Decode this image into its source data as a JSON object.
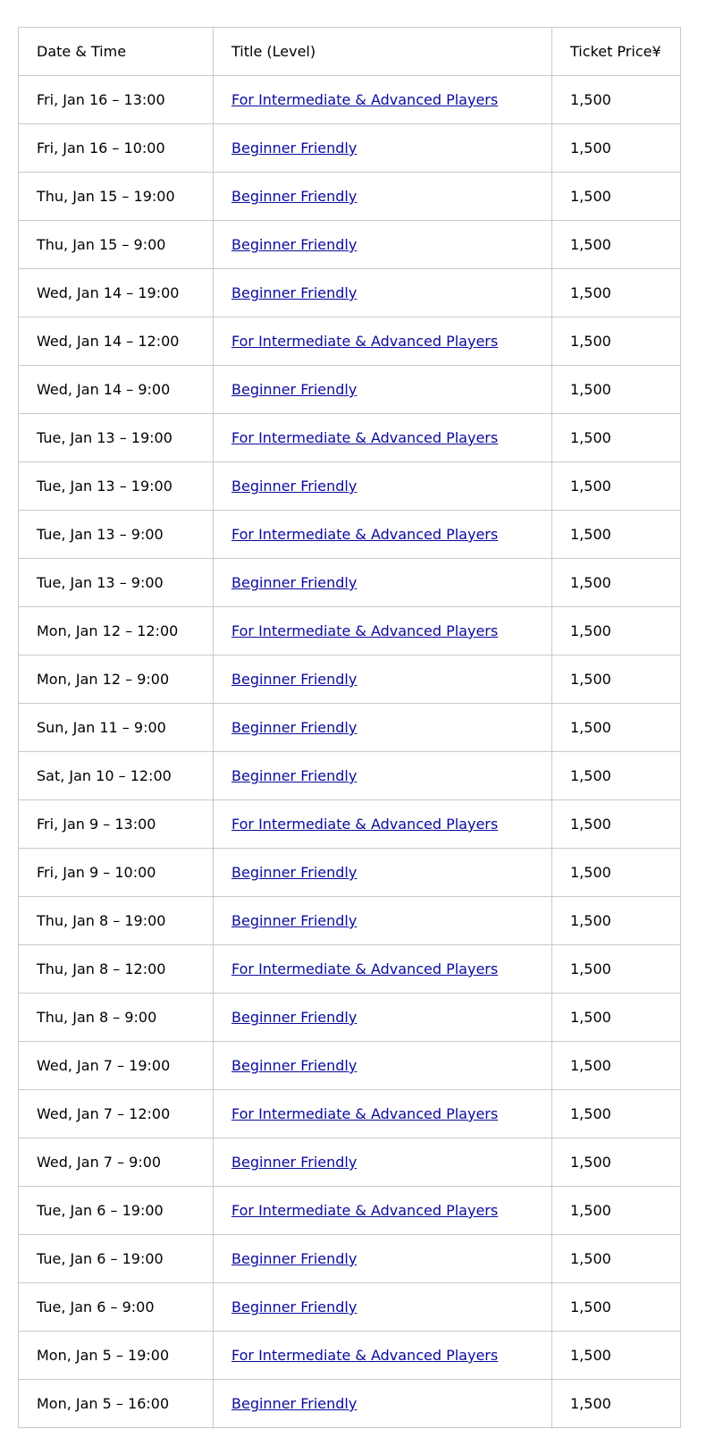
{
  "table": {
    "headers": [
      "Date & Time",
      "Title (Level)",
      "Ticket Price¥"
    ],
    "rows": [
      [
        "Fri, Jan 16 – 13:00",
        "For Intermediate & Advanced Players",
        "1,500"
      ],
      [
        "Fri, Jan 16 – 10:00",
        "Beginner Friendly",
        "1,500"
      ],
      [
        "Thu, Jan 15 – 19:00",
        "Beginner Friendly",
        "1,500"
      ],
      [
        "Thu, Jan 15 – 9:00",
        "Beginner Friendly",
        "1,500"
      ],
      [
        "Wed, Jan 14 – 19:00",
        "Beginner Friendly",
        "1,500"
      ],
      [
        "Wed, Jan 14 – 12:00",
        "For Intermediate & Advanced Players",
        "1,500"
      ],
      [
        "Wed, Jan 14 – 9:00",
        "Beginner Friendly",
        "1,500"
      ],
      [
        "Tue, Jan 13 – 19:00",
        "For Intermediate & Advanced Players",
        "1,500"
      ],
      [
        "Tue, Jan 13 – 19:00",
        "Beginner Friendly",
        "1,500"
      ],
      [
        "Tue, Jan 13 – 9:00",
        "For Intermediate & Advanced Players",
        "1,500"
      ],
      [
        "Tue, Jan 13 – 9:00",
        "Beginner Friendly",
        "1,500"
      ],
      [
        "Mon, Jan 12 – 12:00",
        "For Intermediate & Advanced Players",
        "1,500"
      ],
      [
        "Mon, Jan 12 – 9:00",
        "Beginner Friendly",
        "1,500"
      ],
      [
        "Sun, Jan 11 – 9:00",
        "Beginner Friendly",
        "1,500"
      ],
      [
        "Sat, Jan 10 – 12:00",
        "Beginner Friendly",
        "1,500"
      ],
      [
        "Fri, Jan 9 – 13:00",
        "For Intermediate & Advanced Players",
        "1,500"
      ],
      [
        "Fri, Jan 9 – 10:00",
        "Beginner Friendly",
        "1,500"
      ],
      [
        "Thu, Jan 8 – 19:00",
        "Beginner Friendly",
        "1,500"
      ],
      [
        "Thu, Jan 8 – 12:00",
        "For Intermediate & Advanced Players",
        "1,500"
      ],
      [
        "Thu, Jan 8 – 9:00",
        "Beginner Friendly",
        "1,500"
      ],
      [
        "Wed, Jan 7 – 19:00",
        "Beginner Friendly",
        "1,500"
      ],
      [
        "Wed, Jan 7 – 12:00",
        "For Intermediate & Advanced Players",
        "1,500"
      ],
      [
        "Wed, Jan 7 – 9:00",
        "Beginner Friendly",
        "1,500"
      ],
      [
        "Tue, Jan 6 – 19:00",
        "For Intermediate & Advanced Players",
        "1,500"
      ],
      [
        "Tue, Jan 6 – 19:00",
        "Beginner Friendly",
        "1,500"
      ],
      [
        "Tue, Jan 6 – 9:00",
        "Beginner Friendly",
        "1,500"
      ],
      [
        "Mon, Jan 5 – 19:00",
        "For Intermediate & Advanced Players",
        "1,500"
      ],
      [
        "Mon, Jan 5 – 16:00",
        "Beginner Friendly",
        "1,500"
      ]
    ]
  },
  "colors": {
    "link": "#0b0b9e",
    "border": "#c8c8c8"
  }
}
